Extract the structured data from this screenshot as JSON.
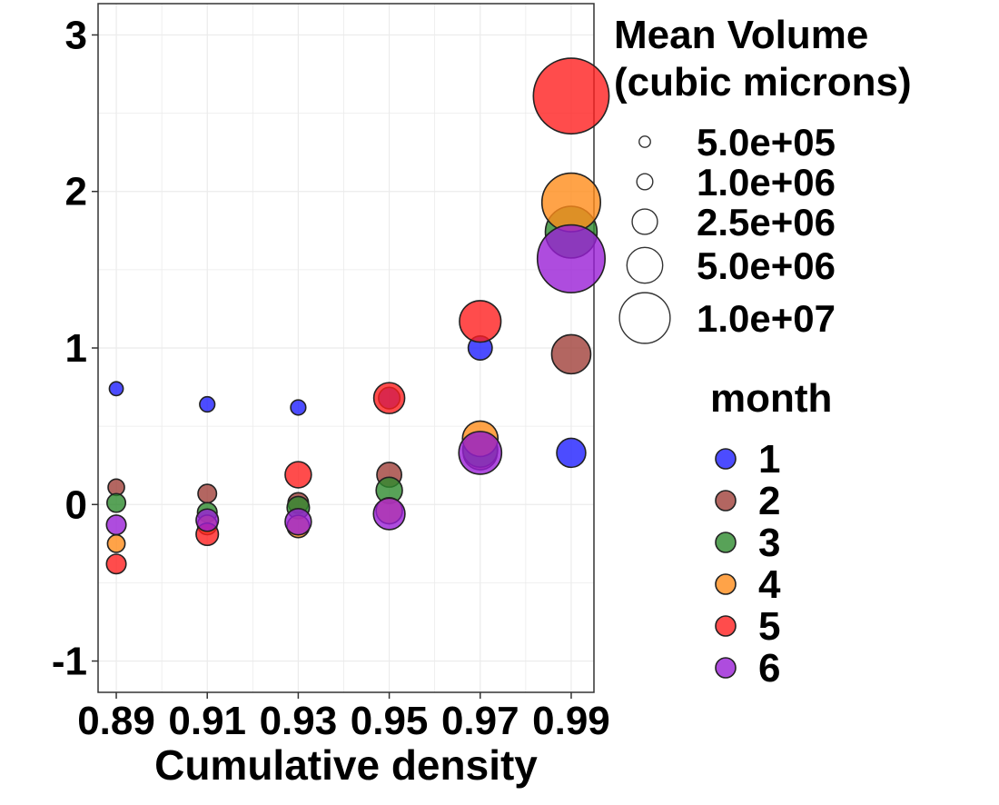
{
  "chart_data": {
    "type": "scatter",
    "xlabel": "Cumulative density",
    "ylabel": "",
    "x_ticks": [
      "0.89",
      "0.91",
      "0.93",
      "0.95",
      "0.97",
      "0.99"
    ],
    "y_ticks": [
      "-1",
      "0",
      "1",
      "2",
      "3"
    ],
    "xlim": [
      0.886,
      0.995
    ],
    "ylim": [
      -1.2,
      3.2
    ],
    "grid": true,
    "legend_placement": "right",
    "size_legend": {
      "title_line1": "Mean Volume",
      "title_line2": "(cubic microns)",
      "items": [
        {
          "label": "5.0e+05",
          "value": 500000
        },
        {
          "label": "1.0e+06",
          "value": 1000000
        },
        {
          "label": "2.5e+06",
          "value": 2500000
        },
        {
          "label": "5.0e+06",
          "value": 5000000
        },
        {
          "label": "1.0e+07",
          "value": 10000000
        }
      ]
    },
    "color_legend": {
      "title": "month",
      "items": [
        {
          "label": "1",
          "color": "#1F1FFF"
        },
        {
          "label": "2",
          "color": "#A0403A"
        },
        {
          "label": "3",
          "color": "#2E8B2E"
        },
        {
          "label": "4",
          "color": "#FF8C1A"
        },
        {
          "label": "5",
          "color": "#FF1F1F"
        },
        {
          "label": "6",
          "color": "#9A1FD6"
        }
      ]
    },
    "series": [
      {
        "name": "1",
        "color": "#1F1FFF",
        "points": [
          {
            "x": 0.89,
            "y": 0.74,
            "size": 500000
          },
          {
            "x": 0.91,
            "y": 0.64,
            "size": 600000
          },
          {
            "x": 0.93,
            "y": 0.62,
            "size": 600000
          },
          {
            "x": 0.95,
            "y": 0.68,
            "size": 1200000
          },
          {
            "x": 0.97,
            "y": 1.0,
            "size": 1500000
          },
          {
            "x": 0.99,
            "y": 0.33,
            "size": 2200000
          }
        ]
      },
      {
        "name": "2",
        "color": "#A0403A",
        "points": [
          {
            "x": 0.89,
            "y": 0.11,
            "size": 700000
          },
          {
            "x": 0.91,
            "y": 0.07,
            "size": 900000
          },
          {
            "x": 0.93,
            "y": 0.01,
            "size": 1100000
          },
          {
            "x": 0.95,
            "y": 0.19,
            "size": 1600000
          },
          {
            "x": 0.97,
            "y": 0.33,
            "size": 3000000
          },
          {
            "x": 0.99,
            "y": 0.96,
            "size": 4000000
          }
        ]
      },
      {
        "name": "3",
        "color": "#2E8B2E",
        "points": [
          {
            "x": 0.89,
            "y": 0.01,
            "size": 900000
          },
          {
            "x": 0.91,
            "y": -0.05,
            "size": 1000000
          },
          {
            "x": 0.93,
            "y": -0.02,
            "size": 1300000
          },
          {
            "x": 0.95,
            "y": 0.09,
            "size": 1800000
          },
          {
            "x": 0.97,
            "y": 0.35,
            "size": 3200000
          },
          {
            "x": 0.99,
            "y": 1.74,
            "size": 7000000
          }
        ]
      },
      {
        "name": "4",
        "color": "#FF8C1A",
        "points": [
          {
            "x": 0.89,
            "y": -0.25,
            "size": 800000
          },
          {
            "x": 0.91,
            "y": -0.13,
            "size": 1000000
          },
          {
            "x": 0.93,
            "y": -0.14,
            "size": 1300000
          },
          {
            "x": 0.95,
            "y": -0.04,
            "size": 1800000
          },
          {
            "x": 0.97,
            "y": 0.42,
            "size": 3300000
          },
          {
            "x": 0.99,
            "y": 1.93,
            "size": 9000000
          }
        ]
      },
      {
        "name": "5",
        "color": "#FF1F1F",
        "points": [
          {
            "x": 0.89,
            "y": -0.38,
            "size": 1000000
          },
          {
            "x": 0.91,
            "y": -0.19,
            "size": 1300000
          },
          {
            "x": 0.93,
            "y": 0.19,
            "size": 1800000
          },
          {
            "x": 0.95,
            "y": 0.68,
            "size": 2500000
          },
          {
            "x": 0.97,
            "y": 1.17,
            "size": 4500000
          },
          {
            "x": 0.99,
            "y": 2.61,
            "size": 15000000
          }
        ]
      },
      {
        "name": "6",
        "color": "#9A1FD6",
        "points": [
          {
            "x": 0.89,
            "y": -0.13,
            "size": 1000000
          },
          {
            "x": 0.91,
            "y": -0.1,
            "size": 1300000
          },
          {
            "x": 0.93,
            "y": -0.11,
            "size": 1800000
          },
          {
            "x": 0.95,
            "y": -0.06,
            "size": 2600000
          },
          {
            "x": 0.97,
            "y": 0.33,
            "size": 4800000
          },
          {
            "x": 0.99,
            "y": 1.57,
            "size": 12000000
          }
        ]
      }
    ]
  }
}
